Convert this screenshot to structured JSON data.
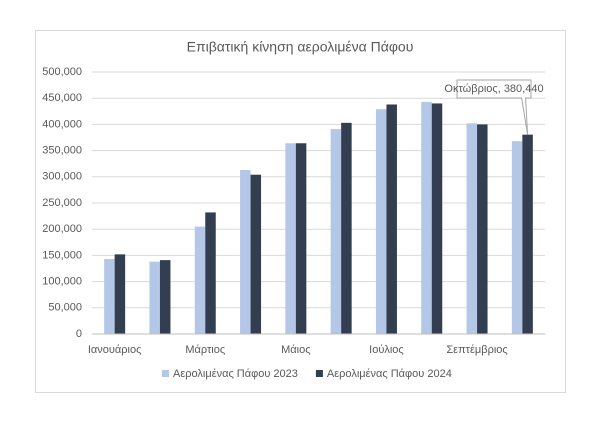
{
  "chart_data": {
    "type": "bar",
    "title": "Επιβατική κίνηση αερολιμένα Πάφου",
    "categories": [
      "Ιανουάριος",
      null,
      "Μάρτιος",
      null,
      "Μάιος",
      null,
      "Ιούλιος",
      null,
      "Σεπτέμβριος",
      null
    ],
    "series": [
      {
        "name": "Αερολιμένας Πάφου 2023",
        "color": "#b4c7e7",
        "values": [
          143000,
          138000,
          205000,
          313000,
          364000,
          391000,
          429000,
          443000,
          402000,
          368000
        ]
      },
      {
        "name": "Αερολιμένας Πάφου 2024",
        "color": "#333f50",
        "values": [
          152000,
          141000,
          232000,
          304000,
          364000,
          403000,
          438000,
          440000,
          400000,
          380440
        ]
      }
    ],
    "annotation": "Οκτώβριος, 380,440",
    "ylim": [
      0,
      500000
    ],
    "yticks": [
      0,
      {
        "value": 50000,
        "label": "50,000"
      },
      {
        "value": 100000,
        "label": "100,000"
      },
      {
        "value": 150000,
        "label": "150,000"
      },
      {
        "value": 200000,
        "label": "200,000"
      },
      {
        "value": 250000,
        "label": "250,000"
      },
      {
        "value": 300000,
        "label": "300,000"
      },
      {
        "value": 350000,
        "label": "350,000"
      },
      {
        "value": 400000,
        "label": "400,000"
      },
      {
        "value": 450000,
        "label": "450,000"
      },
      {
        "value": 500000,
        "label": "500,000"
      }
    ],
    "grid": true,
    "legend": "bottom"
  }
}
